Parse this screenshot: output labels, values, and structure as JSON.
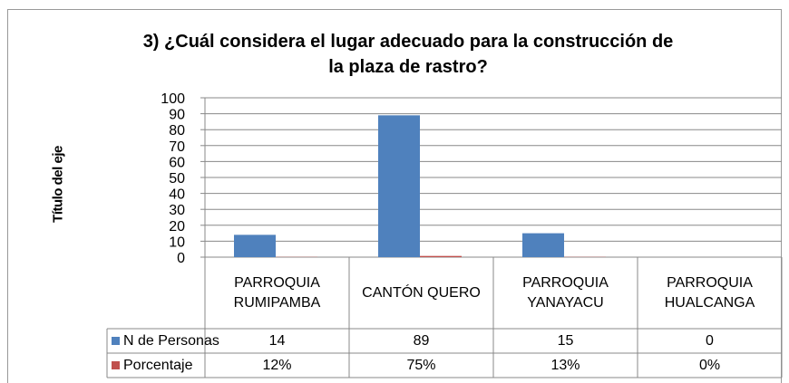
{
  "chart_data": {
    "type": "bar",
    "title": "3) ¿Cuál considera el lugar adecuado para la construcción de la plaza de rastro?",
    "y_label": "Título del eje",
    "categories": [
      "PARROQUIA RUMIPAMBA",
      "CANTÓN QUERO",
      "PARROQUIA YANAYACU",
      "PARROQUIA HUALCANGA"
    ],
    "series": [
      {
        "name": "N de Personas",
        "color": "#4f81bd",
        "values": [
          14,
          89,
          15,
          0
        ]
      },
      {
        "name": "Porcentaje",
        "color": "#c0504d",
        "values": [
          0.12,
          0.75,
          0.13,
          0
        ],
        "value_labels": [
          "12%",
          "75%",
          "13%",
          "0%"
        ]
      }
    ],
    "ylim": [
      0,
      100
    ],
    "yticks": [
      0,
      10,
      20,
      30,
      40,
      50,
      60,
      70,
      80,
      90,
      100
    ],
    "grid": true,
    "data_table": true
  }
}
